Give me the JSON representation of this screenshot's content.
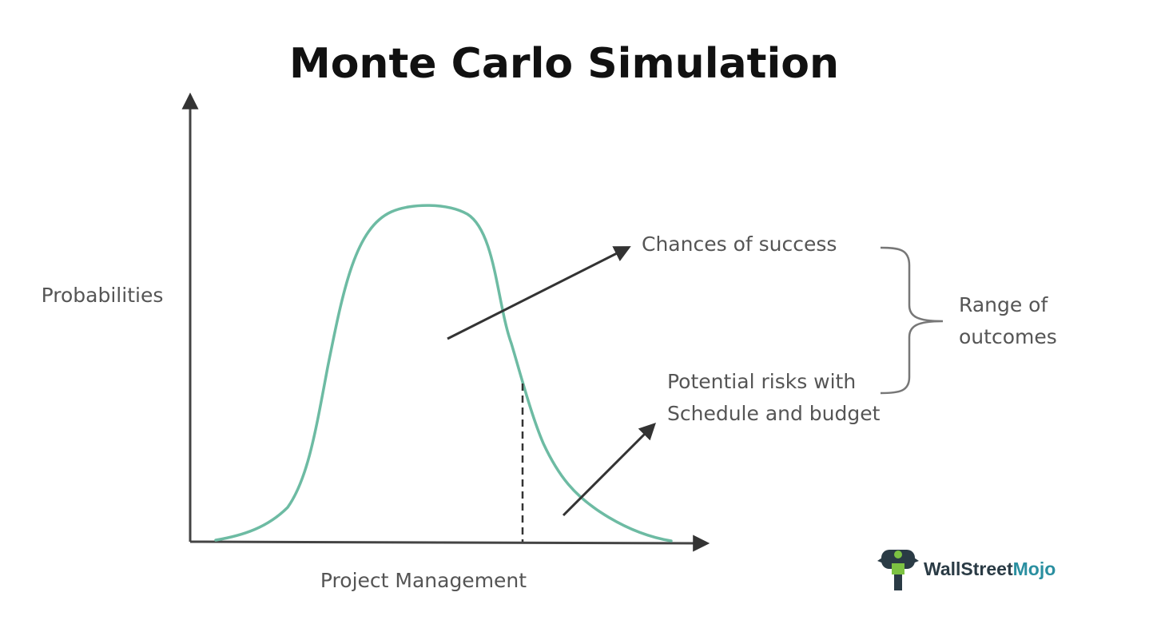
{
  "title": "Monte Carlo Simulation",
  "axes": {
    "y_label": "Probabilities",
    "x_label": "Project Management"
  },
  "annotations": {
    "chances": "Chances of success",
    "risks_line1": "Potential risks with",
    "risks_line2": "Schedule and budget",
    "range_line1": "Range of",
    "range_line2": "outcomes"
  },
  "logo": {
    "part1": "WallStreet",
    "part2": "Mojo"
  },
  "colors": {
    "curve": "#6dbba3",
    "axis": "#333333",
    "text": "#555555",
    "logo_dark": "#2a3b45",
    "logo_accent": "#2a8fa0",
    "logo_green": "#7cc242"
  },
  "icons": [
    "bull-bear-logo-icon"
  ]
}
